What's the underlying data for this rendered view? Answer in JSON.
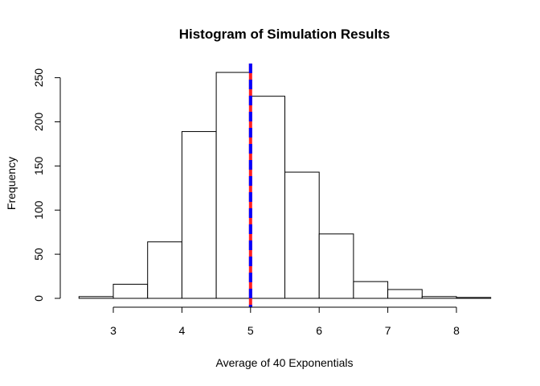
{
  "chart_data": {
    "type": "bar",
    "subtype": "histogram",
    "title": "Histogram of Simulation Results",
    "xlabel": "Average of 40 Exponentials",
    "ylabel": "Frequency",
    "bins": [
      {
        "start": 2.5,
        "end": 3.0,
        "count": 2
      },
      {
        "start": 3.0,
        "end": 3.5,
        "count": 16
      },
      {
        "start": 3.5,
        "end": 4.0,
        "count": 64
      },
      {
        "start": 4.0,
        "end": 4.5,
        "count": 189
      },
      {
        "start": 4.5,
        "end": 5.0,
        "count": 256
      },
      {
        "start": 5.0,
        "end": 5.5,
        "count": 229
      },
      {
        "start": 5.5,
        "end": 6.0,
        "count": 143
      },
      {
        "start": 6.0,
        "end": 6.5,
        "count": 73
      },
      {
        "start": 6.5,
        "end": 7.0,
        "count": 19
      },
      {
        "start": 7.0,
        "end": 7.5,
        "count": 10
      },
      {
        "start": 7.5,
        "end": 8.0,
        "count": 2
      },
      {
        "start": 8.0,
        "end": 8.5,
        "count": 1
      }
    ],
    "x_ticks": [
      "3",
      "4",
      "5",
      "6",
      "7",
      "8"
    ],
    "y_ticks": [
      "0",
      "50",
      "100",
      "150",
      "200",
      "250"
    ],
    "xlim": [
      2.5,
      8.5
    ],
    "ylim": [
      0,
      265
    ],
    "vertical_lines": [
      {
        "x": 5.0,
        "color": "#ff2020",
        "style": "solid"
      },
      {
        "x": 5.0,
        "color": "#0000ff",
        "style": "dashed"
      }
    ],
    "bar_fill": "#ffffff",
    "bar_stroke": "#000000",
    "grid": false
  }
}
